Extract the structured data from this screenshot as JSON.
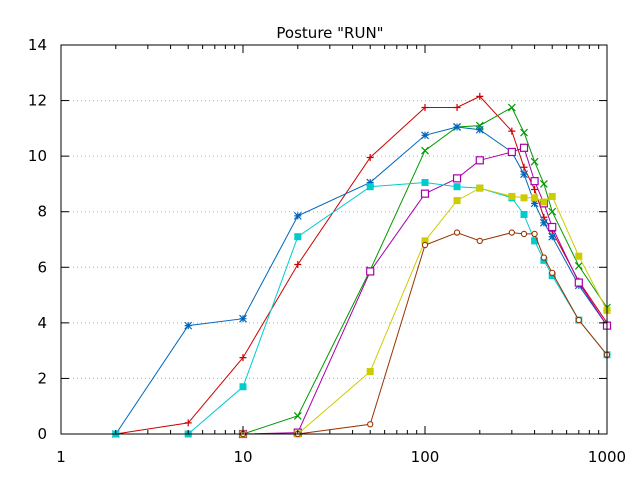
{
  "chart_data": {
    "type": "line",
    "title": "Posture \"RUN\"",
    "xlabel": "",
    "ylabel": "",
    "xscale": "log",
    "xlim": [
      1,
      1000
    ],
    "ylim": [
      0,
      14
    ],
    "xticks": [
      1,
      10,
      100,
      1000
    ],
    "xtick_labels": [
      "1",
      "10",
      "100",
      "1000"
    ],
    "yticks": [
      0,
      2,
      4,
      6,
      8,
      10,
      12,
      14
    ],
    "ytick_labels": [
      "0",
      "2",
      "4",
      "6",
      "8",
      "10",
      "12",
      "14"
    ],
    "grid": "horizontal dotted",
    "legend": "none",
    "series": [
      {
        "color": "#cc0000",
        "marker": "plus",
        "x": [
          2,
          5,
          10,
          20,
          50,
          100,
          150,
          200,
          300,
          350,
          400,
          450,
          500,
          700,
          1000
        ],
        "y": [
          0,
          0.4,
          2.75,
          6.1,
          9.95,
          11.75,
          11.75,
          12.15,
          10.9,
          9.6,
          8.8,
          7.8,
          7.3,
          5.5,
          4.0
        ]
      },
      {
        "color": "#009900",
        "marker": "x",
        "x": [
          10,
          20,
          50,
          100,
          150,
          200,
          300,
          350,
          400,
          450,
          500,
          700,
          1000
        ],
        "y": [
          0,
          0.65,
          5.9,
          10.2,
          11.05,
          11.1,
          11.75,
          10.85,
          9.8,
          9.0,
          8.0,
          6.05,
          4.55
        ]
      },
      {
        "color": "#0066bb",
        "marker": "asterisk",
        "x": [
          2,
          5,
          10,
          20,
          50,
          100,
          150,
          200,
          300,
          350,
          400,
          450,
          500,
          700,
          1000
        ],
        "y": [
          0,
          3.9,
          4.15,
          7.85,
          9.05,
          10.75,
          11.05,
          10.95,
          10.15,
          9.35,
          8.3,
          7.6,
          7.1,
          5.35,
          3.9
        ]
      },
      {
        "color": "#aa00aa",
        "marker": "open-square",
        "x": [
          10,
          20,
          50,
          100,
          150,
          200,
          300,
          350,
          400,
          450,
          500,
          700,
          1000
        ],
        "y": [
          0,
          0.05,
          5.85,
          8.65,
          9.2,
          9.85,
          10.15,
          10.3,
          9.1,
          8.3,
          7.45,
          5.45,
          3.9
        ]
      },
      {
        "color": "#00cccc",
        "marker": "filled-square",
        "x": [
          2,
          5,
          10,
          20,
          50,
          100,
          150,
          200,
          300,
          350,
          400,
          450,
          500,
          700,
          1000
        ],
        "y": [
          0,
          0,
          1.7,
          7.1,
          8.9,
          9.05,
          8.9,
          8.85,
          8.5,
          7.9,
          6.95,
          6.25,
          5.7,
          4.1,
          2.85
        ]
      },
      {
        "color": "#cccc00",
        "marker": "filled-square",
        "x": [
          10,
          20,
          50,
          100,
          150,
          200,
          300,
          350,
          400,
          450,
          500,
          700,
          1000
        ],
        "y": [
          0,
          0,
          2.25,
          6.95,
          8.4,
          8.85,
          8.55,
          8.5,
          8.5,
          8.35,
          8.55,
          6.4,
          4.45
        ]
      },
      {
        "color": "#993300",
        "marker": "open-circle",
        "x": [
          10,
          20,
          50,
          100,
          150,
          200,
          300,
          350,
          400,
          450,
          500,
          700,
          1000
        ],
        "y": [
          0,
          0,
          0.35,
          6.8,
          7.25,
          6.95,
          7.25,
          7.2,
          7.2,
          6.35,
          5.8,
          4.1,
          2.85
        ]
      }
    ]
  }
}
